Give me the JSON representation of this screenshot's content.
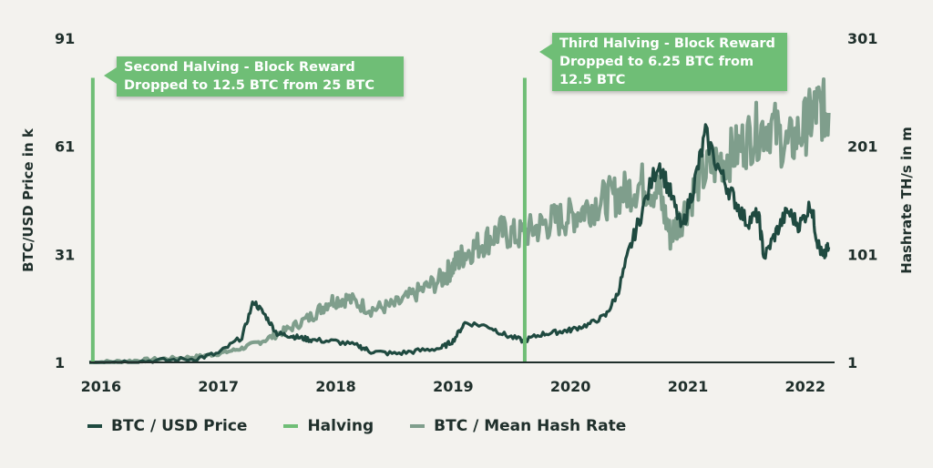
{
  "chart_data": {
    "type": "line",
    "title": "",
    "ylabel_left": "BTC/USD Price in k",
    "ylabel_right": "Hashrate TH/s in m",
    "ylim_left": [
      1,
      91
    ],
    "ylim_right": [
      1,
      301
    ],
    "yticks_left": [
      "1",
      "31",
      "61",
      "91"
    ],
    "yticks_right": [
      "1",
      "101",
      "201",
      "301"
    ],
    "xlim": [
      2015.9,
      2022.25
    ],
    "xticks": [
      {
        "value": 2016,
        "label": "2016"
      },
      {
        "value": 2017,
        "label": "2017"
      },
      {
        "value": 2018,
        "label": "2018"
      },
      {
        "value": 2019,
        "label": "2019"
      },
      {
        "value": 2020,
        "label": "2020"
      },
      {
        "value": 2021,
        "label": "2021"
      },
      {
        "value": 2022,
        "label": "2022"
      }
    ],
    "series": [
      {
        "name": "BTC / USD Price",
        "axis": "left",
        "color": "#1f4a40",
        "x": [
          2015.9,
          2016.2,
          2016.5,
          2016.8,
          2017.0,
          2017.2,
          2017.3,
          2017.4,
          2017.5,
          2017.6,
          2017.7,
          2017.8,
          2018.0,
          2018.2,
          2018.3,
          2018.5,
          2018.7,
          2018.9,
          2019.0,
          2019.1,
          2019.3,
          2019.45,
          2019.6,
          2019.75,
          2019.9,
          2020.0,
          2020.15,
          2020.3,
          2020.4,
          2020.5,
          2020.6,
          2020.75,
          2020.85,
          2020.95,
          2021.05,
          2021.15,
          2021.3,
          2021.4,
          2021.5,
          2021.6,
          2021.65,
          2021.75,
          2021.85,
          2021.95,
          2022.05,
          2022.1,
          2022.15,
          2022.2
        ],
        "y": [
          1.0,
          1.2,
          1.5,
          2.0,
          3.5,
          8.0,
          18.0,
          14.0,
          9.0,
          8.5,
          7.8,
          7.2,
          6.8,
          5.5,
          4.0,
          3.4,
          4.2,
          5.0,
          7.0,
          12.0,
          11.0,
          8.5,
          7.0,
          8.8,
          9.5,
          10.0,
          11.5,
          14.0,
          20.0,
          32.0,
          42.0,
          57.0,
          48.0,
          38.0,
          50.0,
          64.0,
          52.0,
          46.0,
          40.0,
          42.0,
          30.0,
          37.0,
          43.0,
          39.0,
          45.0,
          35.0,
          30.0,
          33.0
        ]
      },
      {
        "name": "Halving",
        "axis": "left",
        "color": "#6fbe76",
        "x": [
          2015.93,
          2019.61
        ],
        "y": [
          80,
          80
        ]
      },
      {
        "name": "BTC / Mean Hash Rate",
        "axis": "right",
        "color": "#7f9e8c",
        "x": [
          2015.9,
          2016.2,
          2016.5,
          2016.8,
          2017.0,
          2017.2,
          2017.4,
          2017.6,
          2017.8,
          2017.95,
          2018.1,
          2018.3,
          2018.5,
          2018.7,
          2018.9,
          2019.0,
          2019.1,
          2019.25,
          2019.4,
          2019.55,
          2019.7,
          2019.85,
          2020.0,
          2020.15,
          2020.3,
          2020.45,
          2020.6,
          2020.75,
          2020.85,
          2020.95,
          2021.1,
          2021.25,
          2021.4,
          2021.55,
          2021.7,
          2021.85,
          2022.0,
          2022.1,
          2022.2
        ],
        "y": [
          1,
          2,
          4,
          6,
          9,
          14,
          22,
          32,
          44,
          58,
          60,
          50,
          54,
          66,
          78,
          90,
          102,
          112,
          122,
          118,
          125,
          132,
          136,
          145,
          152,
          158,
          166,
          160,
          118,
          136,
          172,
          186,
          196,
          212,
          222,
          200,
          220,
          236,
          232
        ]
      }
    ],
    "annotations": [
      {
        "text": "Second Halving - Block Reward Dropped to 12.5 BTC from 25 BTC",
        "x": 2015.93
      },
      {
        "text": "Third Halving - Block Reward Dropped to 6.25 BTC from 12.5 BTC",
        "x": 2019.61
      }
    ],
    "legend": [
      {
        "label": "BTC / USD Price",
        "color": "#1f4a40"
      },
      {
        "label": "Halving",
        "color": "#6fbe76"
      },
      {
        "label": "BTC / Mean Hash Rate",
        "color": "#7f9e8c"
      }
    ],
    "legend_position": "bottom"
  },
  "callouts": {
    "second_line1": "Second Halving - Block Reward",
    "second_line2": "Dropped to 12.5 BTC from 25 BTC",
    "third_line1": "Third Halving - Block Reward",
    "third_line2": "Dropped to 6.25 BTC from",
    "third_line3": "12.5 BTC"
  }
}
